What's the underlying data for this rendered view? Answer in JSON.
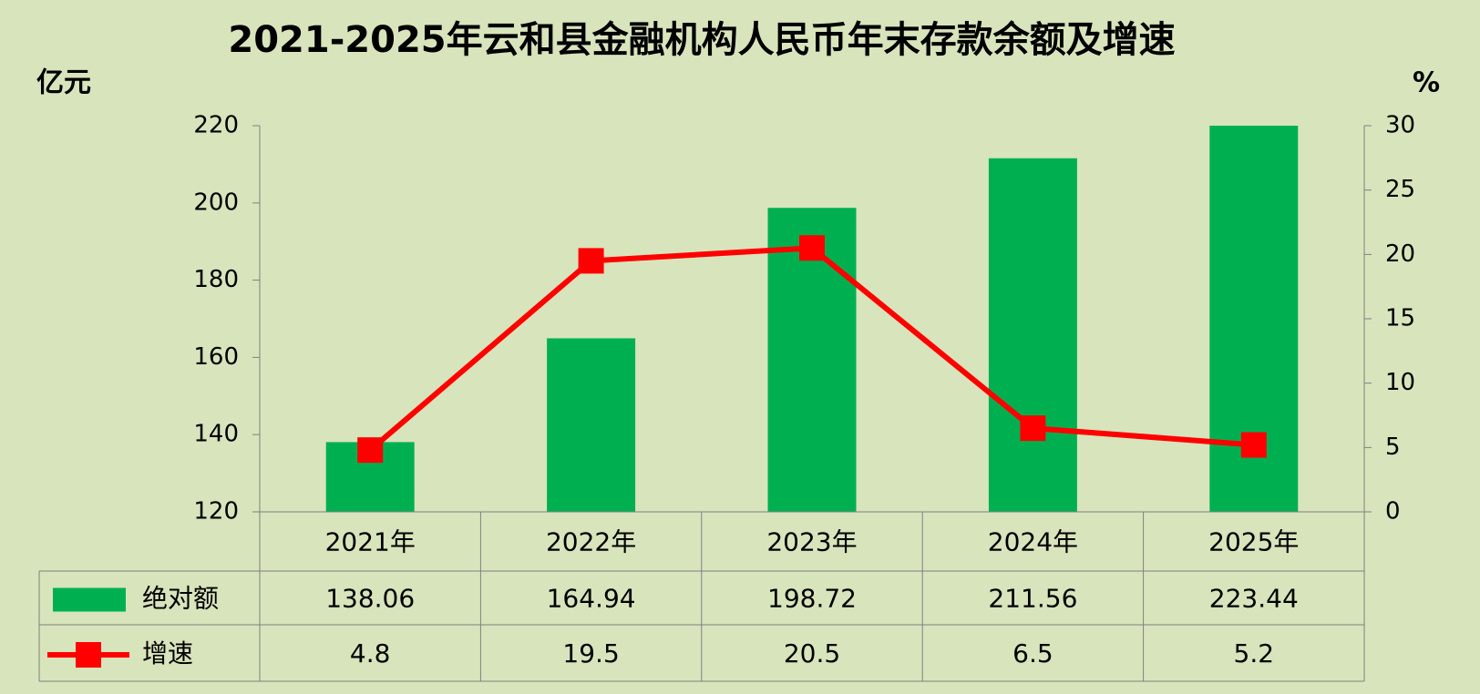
{
  "chart_data": {
    "type": "bar_line",
    "title": "2021-2025年云和县金融机构人民币年末存款余额及增速",
    "y_label": "亿元",
    "y2_label": "%",
    "categories": [
      "2021年",
      "2022年",
      "2023年",
      "2024年",
      "2025年"
    ],
    "series": [
      {
        "name": "绝对额",
        "type": "bar",
        "color": "#00b050",
        "values": [
          138.06,
          164.94,
          198.72,
          211.56,
          223.44
        ]
      },
      {
        "name": "增速",
        "type": "line",
        "color": "#ff0000",
        "axis": "y2",
        "values": [
          4.8,
          19.5,
          20.5,
          6.5,
          5.2
        ]
      }
    ],
    "ylim": [
      120,
      220
    ],
    "yticks": [
      120,
      140,
      160,
      180,
      200,
      220
    ],
    "y2lim": [
      0,
      30
    ],
    "y2ticks": [
      0,
      5,
      10,
      15,
      20,
      25,
      30
    ],
    "data_table": true
  }
}
